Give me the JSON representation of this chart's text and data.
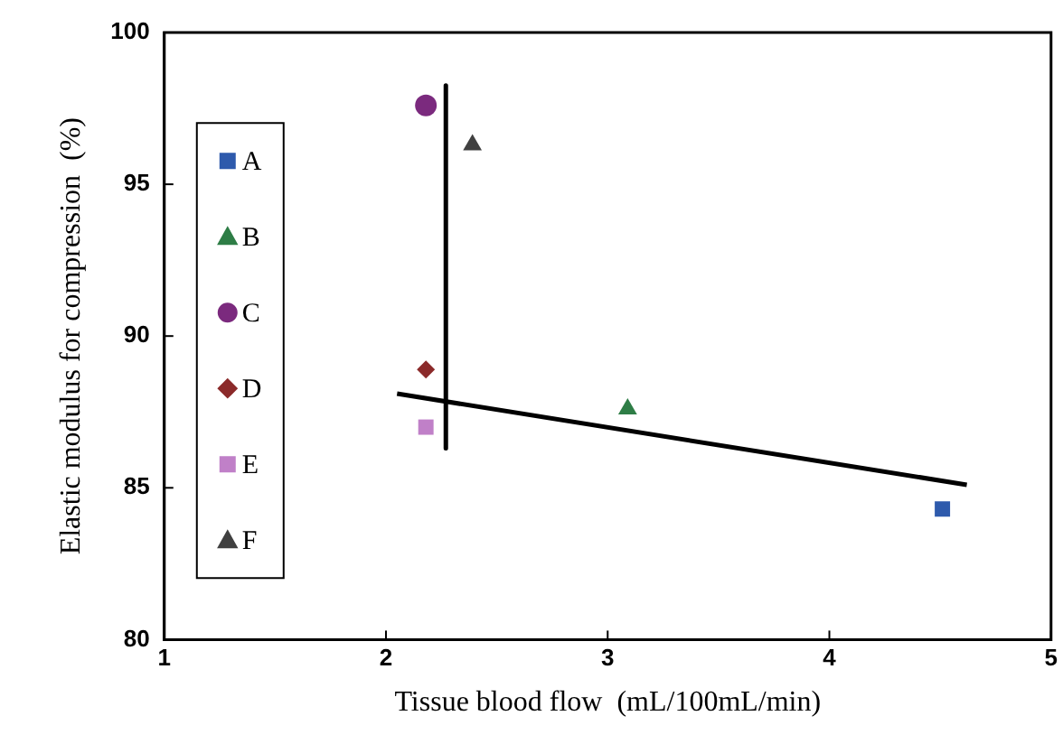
{
  "chart_data": {
    "type": "scatter",
    "xlabel": "Tissue blood flow  (mL/100mL/min)",
    "ylabel": "Elastic modulus for compression  (%)",
    "xlim": [
      1,
      5
    ],
    "xticks": [
      1,
      2,
      3,
      4,
      5
    ],
    "ylim": [
      80,
      100
    ],
    "yticks": [
      80,
      85,
      90,
      95,
      100
    ],
    "grid": false,
    "legend": "left",
    "series": [
      {
        "name": "A",
        "color": "#2e5aac",
        "marker": "square",
        "x": [
          4.51
        ],
        "values": [
          84.3
        ]
      },
      {
        "name": "B",
        "color": "#2e7d46",
        "marker": "triangle",
        "x": [
          3.09
        ],
        "values": [
          87.6
        ]
      },
      {
        "name": "C",
        "color": "#7b2a7e",
        "marker": "circle",
        "x": [
          2.18
        ],
        "values": [
          97.6
        ]
      },
      {
        "name": "D",
        "color": "#8b2a2a",
        "marker": "diamond",
        "x": [
          2.18
        ],
        "values": [
          88.9
        ]
      },
      {
        "name": "E",
        "color": "#c080c8",
        "marker": "square",
        "x": [
          2.18
        ],
        "values": [
          87.0
        ]
      },
      {
        "name": "F",
        "color": "#404040",
        "marker": "triangle",
        "x": [
          2.39
        ],
        "values": [
          96.3
        ]
      },
      {
        "type": "line",
        "color": "#000000",
        "marker": "none",
        "x": [
          2.05,
          4.62
        ],
        "values": [
          88.1,
          85.1
        ]
      },
      {
        "type": "line",
        "color": "#000000",
        "marker": "none",
        "x": [
          2.27,
          2.27
        ],
        "values": [
          98.25,
          86.3
        ]
      }
    ]
  }
}
